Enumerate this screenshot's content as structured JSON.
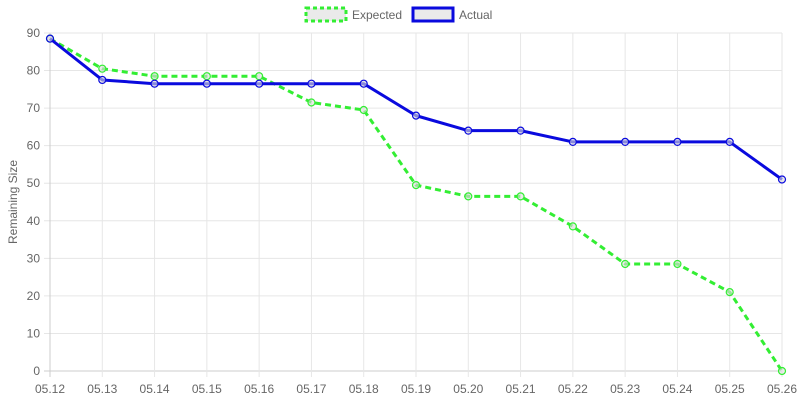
{
  "chart_data": {
    "type": "line",
    "title": "",
    "xlabel": "",
    "ylabel": "Remaining Size",
    "ylim": [
      0,
      90
    ],
    "yticks": [
      0,
      10,
      20,
      30,
      40,
      50,
      60,
      70,
      80,
      90
    ],
    "grid": true,
    "legend_position": "top",
    "categories": [
      "05.12",
      "05.13",
      "05.14",
      "05.15",
      "05.16",
      "05.17",
      "05.18",
      "05.19",
      "05.20",
      "05.21",
      "05.22",
      "05.23",
      "05.24",
      "05.25",
      "05.26"
    ],
    "series": [
      {
        "name": "Expected",
        "color": "#33ee33",
        "style": "dashed",
        "values": [
          88.5,
          80.5,
          78.5,
          78.5,
          78.5,
          71.5,
          69.5,
          49.5,
          46.5,
          46.5,
          38.5,
          28.5,
          28.5,
          21,
          0
        ]
      },
      {
        "name": "Actual",
        "color": "#0a0ade",
        "style": "solid",
        "values": [
          88.5,
          77.5,
          76.5,
          76.5,
          76.5,
          76.5,
          76.5,
          68,
          64,
          64,
          61,
          61,
          61,
          61,
          51
        ]
      }
    ]
  }
}
